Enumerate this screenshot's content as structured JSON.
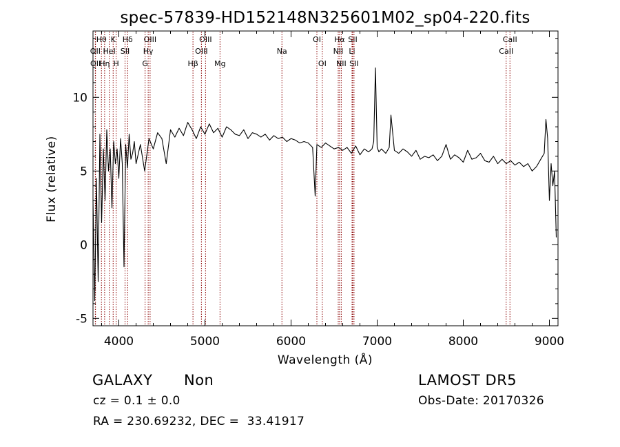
{
  "chart_data": {
    "type": "line",
    "title": "spec-57839-HD152148N325601M02_sp04-220.fits",
    "xlabel": "Wavelength (Å)",
    "ylabel": "Flux (relative)",
    "xlim": [
      3700,
      9100
    ],
    "ylim": [
      -5.5,
      14.5
    ],
    "x_ticks": [
      4000,
      5000,
      6000,
      7000,
      8000,
      9000
    ],
    "y_ticks": [
      -5,
      0,
      5,
      10
    ],
    "grid": false,
    "series": [
      {
        "x": [
          3700,
          3720,
          3740,
          3760,
          3780,
          3800,
          3820,
          3840,
          3860,
          3880,
          3900,
          3920,
          3940,
          3960,
          3980,
          4000,
          4020,
          4040,
          4060,
          4080,
          4100,
          4120,
          4140,
          4160,
          4180,
          4200,
          4250,
          4300,
          4350,
          4400,
          4450,
          4500,
          4550,
          4600,
          4650,
          4700,
          4750,
          4800,
          4850,
          4900,
          4950,
          5000,
          5050,
          5100,
          5150,
          5200,
          5250,
          5300,
          5350,
          5400,
          5450,
          5500,
          5550,
          5600,
          5650,
          5700,
          5750,
          5800,
          5850,
          5900,
          5950,
          6000,
          6050,
          6100,
          6150,
          6200,
          6250,
          6280,
          6300,
          6350,
          6400,
          6450,
          6500,
          6550,
          6600,
          6650,
          6700,
          6750,
          6800,
          6850,
          6900,
          6940,
          6960,
          6980,
          7000,
          7020,
          7050,
          7100,
          7140,
          7160,
          7200,
          7250,
          7300,
          7350,
          7400,
          7450,
          7500,
          7550,
          7600,
          7650,
          7700,
          7750,
          7800,
          7850,
          7900,
          7950,
          8000,
          8050,
          8100,
          8150,
          8200,
          8250,
          8300,
          8350,
          8400,
          8450,
          8500,
          8550,
          8600,
          8650,
          8700,
          8750,
          8800,
          8850,
          8900,
          8940,
          8960,
          8980,
          9000,
          9020,
          9040,
          9060,
          9080
        ],
        "y": [
          3.0,
          -3.8,
          4.5,
          -2.5,
          7.5,
          1.5,
          6.5,
          3.0,
          7.8,
          5.0,
          6.5,
          2.5,
          7.0,
          5.5,
          6.5,
          4.5,
          7.2,
          5.5,
          -1.5,
          6.8,
          5.2,
          7.5,
          5.8,
          6.2,
          7.0,
          5.5,
          6.8,
          5.0,
          7.2,
          6.5,
          7.6,
          7.2,
          5.5,
          7.8,
          7.3,
          7.9,
          7.4,
          8.3,
          7.8,
          7.2,
          8.0,
          7.5,
          8.2,
          7.6,
          7.9,
          7.3,
          8.0,
          7.8,
          7.5,
          7.4,
          7.8,
          7.2,
          7.6,
          7.5,
          7.3,
          7.5,
          7.1,
          7.4,
          7.2,
          7.3,
          7.0,
          7.2,
          7.1,
          6.9,
          7.0,
          6.9,
          6.6,
          3.3,
          6.8,
          6.6,
          6.9,
          6.7,
          6.5,
          6.6,
          6.4,
          6.6,
          6.2,
          6.7,
          6.1,
          6.5,
          6.3,
          6.5,
          7.0,
          12.0,
          6.6,
          6.3,
          6.5,
          6.2,
          6.6,
          8.8,
          6.4,
          6.2,
          6.5,
          6.3,
          6.0,
          6.4,
          5.8,
          6.0,
          5.9,
          6.1,
          5.7,
          6.0,
          6.8,
          5.8,
          6.1,
          5.9,
          5.6,
          6.4,
          5.8,
          5.9,
          6.2,
          5.7,
          5.6,
          6.0,
          5.5,
          5.8,
          5.5,
          5.7,
          5.4,
          5.6,
          5.3,
          5.5,
          5.0,
          5.3,
          5.8,
          6.2,
          8.5,
          7.2,
          3.0,
          5.5,
          4.0,
          5.0,
          0.5
        ]
      }
    ],
    "spectral_lines": [
      {
        "label": "Hθ",
        "x": 3798,
        "row": 0
      },
      {
        "label": "OII",
        "x": 3727,
        "row": 1
      },
      {
        "label": "OII",
        "x": 3729,
        "row": 2
      },
      {
        "label": "Hη",
        "x": 3835,
        "row": 2
      },
      {
        "label": "HeI",
        "x": 3889,
        "row": 1
      },
      {
        "label": "K",
        "x": 3934,
        "row": 0
      },
      {
        "label": "H",
        "x": 3969,
        "row": 2
      },
      {
        "label": "Hδ",
        "x": 4102,
        "row": 0
      },
      {
        "label": "SII",
        "x": 4072,
        "row": 1
      },
      {
        "label": "OIII",
        "x": 4363,
        "row": 0
      },
      {
        "label": "Hγ",
        "x": 4341,
        "row": 1
      },
      {
        "label": "G",
        "x": 4305,
        "row": 2
      },
      {
        "label": "OIII",
        "x": 5007,
        "row": 0
      },
      {
        "label": "OIII",
        "x": 4959,
        "row": 1
      },
      {
        "label": "Hβ",
        "x": 4861,
        "row": 2
      },
      {
        "label": "Mg",
        "x": 5175,
        "row": 2
      },
      {
        "label": "Na",
        "x": 5894,
        "row": 1
      },
      {
        "label": "OI",
        "x": 6300,
        "row": 0
      },
      {
        "label": "OI",
        "x": 6363,
        "row": 2
      },
      {
        "label": "Hα",
        "x": 6563,
        "row": 0
      },
      {
        "label": "NII",
        "x": 6548,
        "row": 1
      },
      {
        "label": "NII",
        "x": 6583,
        "row": 2
      },
      {
        "label": "SII",
        "x": 6716,
        "row": 0
      },
      {
        "label": "Li",
        "x": 6708,
        "row": 1
      },
      {
        "label": "SII",
        "x": 6731,
        "row": 2
      },
      {
        "label": "CaII",
        "x": 8542,
        "row": 0
      },
      {
        "label": "CaII",
        "x": 8498,
        "row": 1
      }
    ]
  },
  "info": {
    "object_class": "GALAXY",
    "subclass": "Non",
    "survey": "LAMOST DR5",
    "cz": "cz = 0.1 ± 0.0",
    "obs_date": "Obs-Date: 20170326",
    "coords": "RA = 230.69232, DEC =  33.41917"
  },
  "colors": {
    "line_marker": "#8b0000",
    "spectrum": "#000000"
  }
}
